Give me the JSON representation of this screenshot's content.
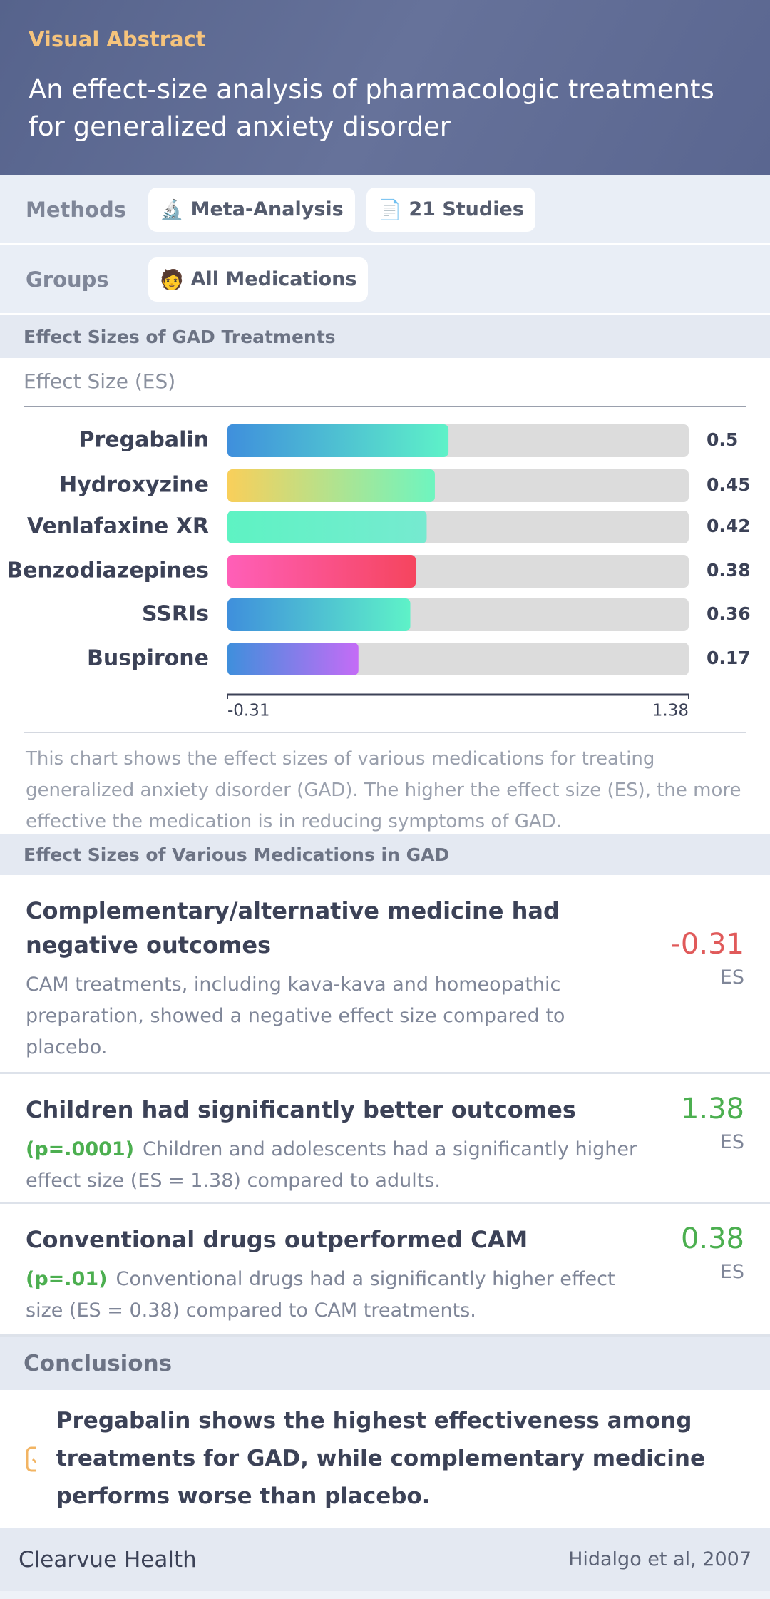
{
  "header": {
    "kicker": "Visual Abstract",
    "title": "An effect-size analysis of pharmacologic treatments for generalized anxiety disorder"
  },
  "methods": {
    "label": "Methods",
    "items": [
      {
        "icon": "🔬",
        "label": "Meta-Analysis"
      },
      {
        "icon": "📄",
        "label": "21 Studies"
      }
    ]
  },
  "groups": {
    "label": "Groups",
    "items": [
      {
        "icon": "🧑",
        "label": "All Medications"
      }
    ]
  },
  "chart_data": {
    "type": "bar",
    "orientation": "horizontal",
    "title": "Effect Sizes of GAD Treatments",
    "x_label": "Effect Size (ES)",
    "categories": [
      "Pregabalin",
      "Hydroxyzine",
      "Venlafaxine XR",
      "Benzodiazepines",
      "SSRIs",
      "Buspirone"
    ],
    "values": [
      0.5,
      0.45,
      0.42,
      0.38,
      0.36,
      0.17
    ],
    "colors": [
      [
        "#3f8fdc",
        "#5ef2c8"
      ],
      [
        "#f9cf5a",
        "#6ef5c0"
      ],
      [
        "#5ef3c3",
        "#76ead0"
      ],
      [
        "#ff5fb8",
        "#f5455e"
      ],
      [
        "#3f8fdc",
        "#5ef2c8"
      ],
      [
        "#3f8fdc",
        "#c46cf6"
      ]
    ],
    "track_color": "#dcdcdc",
    "xlim": [
      -0.31,
      1.38
    ],
    "xticks": [
      -0.31,
      1.38
    ],
    "caption": "This chart shows the effect sizes of various medications for treating generalized anxiety disorder (GAD). The higher the effect size (ES), the more effective the medication is in reducing symptoms of GAD."
  },
  "findings": {
    "title": "Effect Sizes of Various Medications in GAD",
    "items": [
      {
        "title": "Complementary/alternative medicine had negative outcomes",
        "text": "CAM treatments, including kava-kava and homeopathic preparation, showed a negative effect size compared to placebo.",
        "value": -0.31,
        "unit": "ES",
        "color": "#e05a5a"
      },
      {
        "title": "Children had significantly better outcomes",
        "p_value": "(p=.0001)",
        "text": "Children and adolescents had a significantly higher effect size (ES = 1.38) compared to adults.",
        "value": 1.38,
        "unit": "ES",
        "color": "#4caf50"
      },
      {
        "title": "Conventional drugs outperformed CAM",
        "p_value": "(p=.01)",
        "text": "Conventional drugs had a significantly higher effect size (ES = 0.38) compared to CAM treatments.",
        "value": 0.38,
        "unit": "ES",
        "color": "#4caf50"
      }
    ]
  },
  "conclusions": {
    "title": "Conclusions",
    "text": "Pregabalin shows the highest effectiveness among treatments for GAD, while complementary medicine performs worse than placebo."
  },
  "footer": {
    "brand": "Clearvue Health",
    "citation": "Hidalgo et al, 2007"
  }
}
